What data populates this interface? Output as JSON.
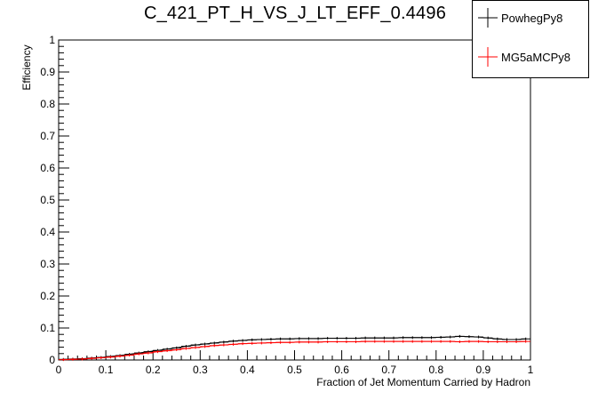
{
  "chart_data": {
    "type": "line",
    "title": "C_421_PT_H_VS_J_LT_EFF_0.4496",
    "xlabel": "Fraction of Jet Momentum Carried by Hadron",
    "ylabel": "Efficiency",
    "xlim": [
      0,
      1
    ],
    "ylim": [
      0,
      1
    ],
    "x_ticks": [
      "0",
      "0.1",
      "0.2",
      "0.3",
      "0.4",
      "0.5",
      "0.6",
      "0.7",
      "0.8",
      "0.9",
      "1"
    ],
    "y_ticks": [
      "0",
      "0.1",
      "0.2",
      "0.3",
      "0.4",
      "0.5",
      "0.6",
      "0.7",
      "0.8",
      "0.9",
      "1"
    ],
    "legend_position": "top-right",
    "x": [
      0.01,
      0.03,
      0.05,
      0.07,
      0.09,
      0.11,
      0.13,
      0.15,
      0.17,
      0.19,
      0.21,
      0.23,
      0.25,
      0.27,
      0.29,
      0.31,
      0.33,
      0.35,
      0.37,
      0.39,
      0.41,
      0.43,
      0.45,
      0.47,
      0.49,
      0.51,
      0.53,
      0.55,
      0.57,
      0.59,
      0.61,
      0.63,
      0.65,
      0.67,
      0.69,
      0.71,
      0.73,
      0.75,
      0.77,
      0.79,
      0.81,
      0.83,
      0.85,
      0.87,
      0.89,
      0.91,
      0.93,
      0.95,
      0.97,
      0.99
    ],
    "series": [
      {
        "name": "PowhegPy8",
        "color": "#000000",
        "values": [
          0.002,
          0.003,
          0.004,
          0.006,
          0.008,
          0.011,
          0.014,
          0.018,
          0.022,
          0.026,
          0.03,
          0.034,
          0.038,
          0.043,
          0.047,
          0.05,
          0.053,
          0.056,
          0.059,
          0.061,
          0.063,
          0.064,
          0.065,
          0.066,
          0.066,
          0.067,
          0.067,
          0.067,
          0.068,
          0.068,
          0.068,
          0.068,
          0.069,
          0.069,
          0.069,
          0.069,
          0.07,
          0.07,
          0.07,
          0.07,
          0.071,
          0.072,
          0.074,
          0.073,
          0.072,
          0.069,
          0.066,
          0.064,
          0.064,
          0.066
        ]
      },
      {
        "name": "MG5aMCPy8",
        "color": "#ff0000",
        "values": [
          0.001,
          0.002,
          0.003,
          0.005,
          0.007,
          0.009,
          0.012,
          0.015,
          0.019,
          0.022,
          0.026,
          0.029,
          0.032,
          0.036,
          0.039,
          0.042,
          0.045,
          0.047,
          0.049,
          0.051,
          0.052,
          0.053,
          0.054,
          0.055,
          0.055,
          0.056,
          0.056,
          0.056,
          0.057,
          0.057,
          0.057,
          0.057,
          0.058,
          0.058,
          0.058,
          0.058,
          0.058,
          0.058,
          0.058,
          0.058,
          0.058,
          0.058,
          0.057,
          0.058,
          0.058,
          0.057,
          0.057,
          0.057,
          0.057,
          0.058
        ]
      }
    ]
  }
}
